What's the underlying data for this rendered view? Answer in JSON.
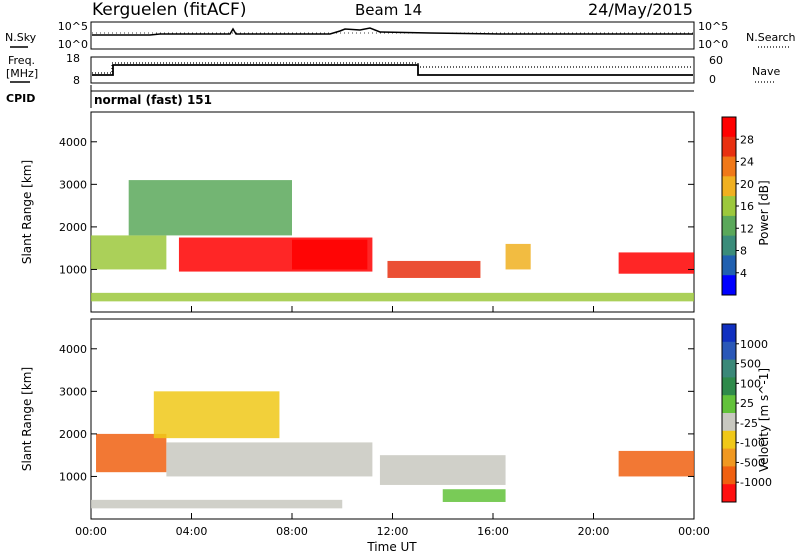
{
  "header": {
    "station": "Kerguelen (fitACF)",
    "beam": "Beam 14",
    "date": "24/May/2015"
  },
  "strip_panels": {
    "nsky_label": "N.Sky",
    "nsky_ticks": [
      "10^5",
      "10^0"
    ],
    "nsearch_label": "N.Search",
    "nsearch_ticks": [
      "10^5",
      "10^0"
    ],
    "freq_label_line1": "Freq.",
    "freq_label_line2": "[MHz]",
    "freq_ticks": [
      "18",
      "8"
    ],
    "nave_label": "Nave",
    "nave_ticks": [
      "60",
      "0"
    ],
    "cpid_label": "CPID",
    "cpid_text": "normal (fast) 151"
  },
  "colors": {
    "power": [
      "#0000ff",
      "#2060b0",
      "#3a8c7a",
      "#5aa85a",
      "#9cc83c",
      "#f0b020",
      "#f07818",
      "#e83010",
      "#ff0000"
    ],
    "velocity": [
      "#1030c0",
      "#2a58b8",
      "#3a8878",
      "#2e8a4a",
      "#62c23a",
      "#c8c8c0",
      "#f0c818",
      "#f09820",
      "#f06010",
      "#ff1010"
    ]
  },
  "chart_data": [
    {
      "type": "heatmap",
      "title": "",
      "xlabel": "",
      "ylabel": "Slant Range [km]",
      "xlim": [
        "00:00",
        "24:00"
      ],
      "ylim": [
        0,
        4700
      ],
      "x_tick_labels": [
        "00:00",
        "04:00",
        "08:00",
        "12:00",
        "16:00",
        "20:00",
        "00:00"
      ],
      "y_tick_labels": [
        "1000",
        "2000",
        "3000",
        "4000"
      ],
      "y_ticks": [
        1000,
        2000,
        3000,
        4000
      ],
      "colorbar": {
        "label": "Power [dB]",
        "ticks": [
          "4",
          "8",
          "12",
          "16",
          "20",
          "24",
          "28"
        ],
        "range": [
          0,
          32
        ]
      },
      "regions": [
        {
          "t0": 0.0,
          "t1": 3.0,
          "r0": 1000,
          "r1": 1800,
          "level": 4
        },
        {
          "t0": 3.5,
          "t1": 11.2,
          "r0": 950,
          "r1": 1750,
          "level": 8
        },
        {
          "t0": 8.0,
          "t1": 11.0,
          "r0": 1000,
          "r1": 1700,
          "level": 8
        },
        {
          "t0": 11.8,
          "t1": 15.5,
          "r0": 800,
          "r1": 1200,
          "level": 7
        },
        {
          "t0": 16.5,
          "t1": 17.5,
          "r0": 1000,
          "r1": 1600,
          "level": 5
        },
        {
          "t0": 21.0,
          "t1": 24.0,
          "r0": 900,
          "r1": 1400,
          "level": 8
        },
        {
          "t0": 1.5,
          "t1": 8.0,
          "r0": 1800,
          "r1": 3100,
          "level": 3
        },
        {
          "t0": 0.0,
          "t1": 24.0,
          "r0": 250,
          "r1": 450,
          "level": 4
        }
      ]
    },
    {
      "type": "heatmap",
      "title": "",
      "xlabel": "Time UT",
      "ylabel": "Slant Range [km]",
      "xlim": [
        "00:00",
        "24:00"
      ],
      "ylim": [
        0,
        4700
      ],
      "x_tick_labels": [
        "00:00",
        "04:00",
        "08:00",
        "12:00",
        "16:00",
        "20:00",
        "00:00"
      ],
      "y_tick_labels": [
        "1000",
        "2000",
        "3000",
        "4000"
      ],
      "y_ticks": [
        1000,
        2000,
        3000,
        4000
      ],
      "colorbar": {
        "label": "Velocity [m s^-1]",
        "ticks": [
          "1000",
          "500",
          "100",
          "25",
          "-25",
          "-100",
          "-500",
          "-1000"
        ]
      },
      "regions": [
        {
          "t0": 0.2,
          "t1": 3.0,
          "r0": 1100,
          "r1": 2000,
          "level": 8
        },
        {
          "t0": 3.0,
          "t1": 11.2,
          "r0": 1000,
          "r1": 1800,
          "level": 5
        },
        {
          "t0": 11.5,
          "t1": 16.5,
          "r0": 800,
          "r1": 1500,
          "level": 5
        },
        {
          "t0": 14.0,
          "t1": 16.5,
          "r0": 400,
          "r1": 700,
          "level": 4
        },
        {
          "t0": 21.0,
          "t1": 24.0,
          "r0": 1000,
          "r1": 1600,
          "level": 8
        },
        {
          "t0": 2.5,
          "t1": 7.5,
          "r0": 1900,
          "r1": 3000,
          "level": 6
        },
        {
          "t0": 0.0,
          "t1": 10.0,
          "r0": 250,
          "r1": 450,
          "level": 5
        }
      ]
    }
  ]
}
